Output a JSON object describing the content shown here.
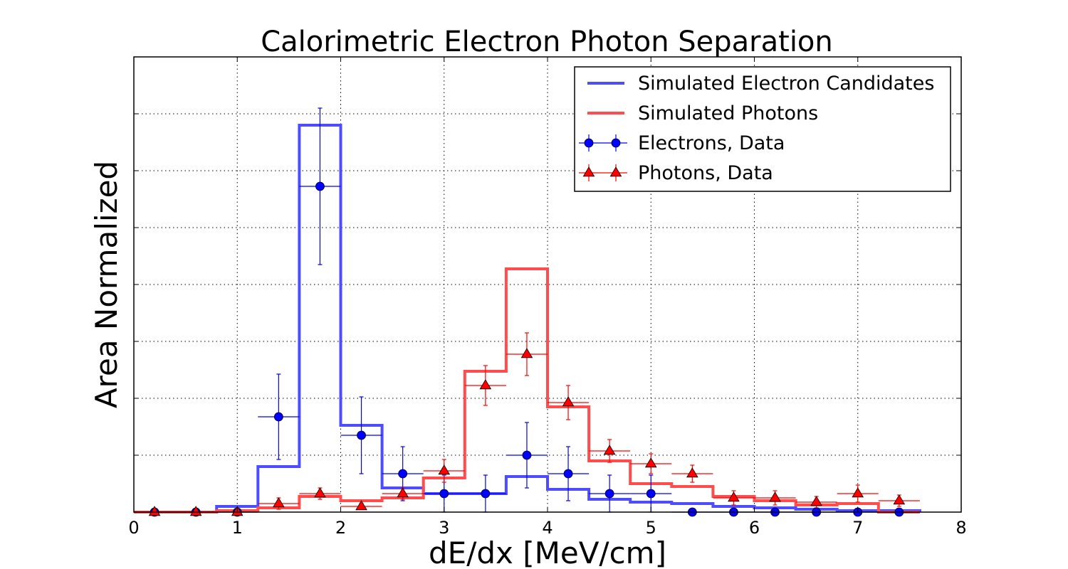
{
  "chart_data": {
    "type": "step-histogram-with-errorbars",
    "title": "Calorimetric Electron Photon Separation",
    "xlabel": "dE/dx [MeV/cm]",
    "ylabel": "Area Normalized",
    "xlim": [
      0,
      8
    ],
    "ylim": [
      0,
      0.16
    ],
    "x_ticks": [
      "0",
      "1",
      "2",
      "3",
      "4",
      "5",
      "6",
      "7",
      "8"
    ],
    "y_ticks_labeled": false,
    "grid": true,
    "legend_position": "upper right",
    "bin_edges": [
      0.0,
      0.4,
      0.8,
      1.2,
      1.6,
      2.0,
      2.4,
      2.8,
      3.2,
      3.6,
      4.0,
      4.4,
      4.8,
      5.2,
      5.6,
      6.0,
      6.4,
      6.8,
      7.2,
      7.6
    ],
    "series": [
      {
        "name": "Simulated Electron Candidates",
        "kind": "step",
        "color": "#4d4dff",
        "values": [
          0.0,
          0.0,
          0.002,
          0.016,
          0.136,
          0.0305,
          0.0085,
          0.0065,
          0.0065,
          0.0125,
          0.008,
          0.0045,
          0.0035,
          0.003,
          0.002,
          0.0015,
          0.001,
          0.0005,
          0.0005
        ]
      },
      {
        "name": "Simulated Photons",
        "kind": "step",
        "color": "#ff4d4d",
        "values": [
          0.0,
          0.0,
          0.0005,
          0.0015,
          0.0055,
          0.004,
          0.005,
          0.012,
          0.0495,
          0.0855,
          0.037,
          0.018,
          0.01,
          0.009,
          0.0055,
          0.004,
          0.0025,
          0.003,
          0.0
        ]
      },
      {
        "name": "Electrons, Data",
        "kind": "errorbar",
        "marker": "circle",
        "color": "#0000ff",
        "x": [
          0.2,
          0.6,
          1.0,
          1.4,
          1.8,
          2.2,
          2.6,
          3.0,
          3.4,
          3.8,
          4.2,
          4.6,
          5.0,
          5.4,
          5.8,
          6.2,
          6.6,
          7.0,
          7.4
        ],
        "y": [
          0.0,
          0.0,
          0.0,
          0.0335,
          0.1145,
          0.027,
          0.0135,
          0.0065,
          0.0065,
          0.02,
          0.0135,
          0.0065,
          0.0065,
          0.0,
          0.0,
          0.0,
          0.0,
          0.0,
          0.0
        ],
        "yerr": [
          0.0,
          0.0,
          0.0,
          0.015,
          0.0275,
          0.0135,
          0.0095,
          0.0065,
          0.0065,
          0.0115,
          0.0095,
          0.0065,
          0.0065,
          0.0,
          0.0,
          0.0,
          0.0,
          0.0,
          0.0
        ],
        "xerr": 0.2
      },
      {
        "name": "Photons, Data",
        "kind": "errorbar",
        "marker": "triangle",
        "color": "#ff0000",
        "x": [
          0.2,
          0.6,
          1.0,
          1.4,
          1.8,
          2.2,
          2.6,
          3.0,
          3.4,
          3.8,
          4.2,
          4.6,
          5.0,
          5.4,
          5.8,
          6.2,
          6.6,
          7.0,
          7.4
        ],
        "y": [
          0.0,
          0.0,
          0.0,
          0.003,
          0.0065,
          0.002,
          0.0065,
          0.0145,
          0.0445,
          0.0555,
          0.0385,
          0.0215,
          0.017,
          0.0135,
          0.005,
          0.005,
          0.0035,
          0.0065,
          0.004
        ],
        "yerr": [
          0.0,
          0.0,
          0.0,
          0.002,
          0.002,
          0.001,
          0.002,
          0.004,
          0.007,
          0.0075,
          0.006,
          0.004,
          0.0035,
          0.003,
          0.0025,
          0.0025,
          0.002,
          0.003,
          0.002
        ],
        "xerr": 0.2
      }
    ]
  }
}
